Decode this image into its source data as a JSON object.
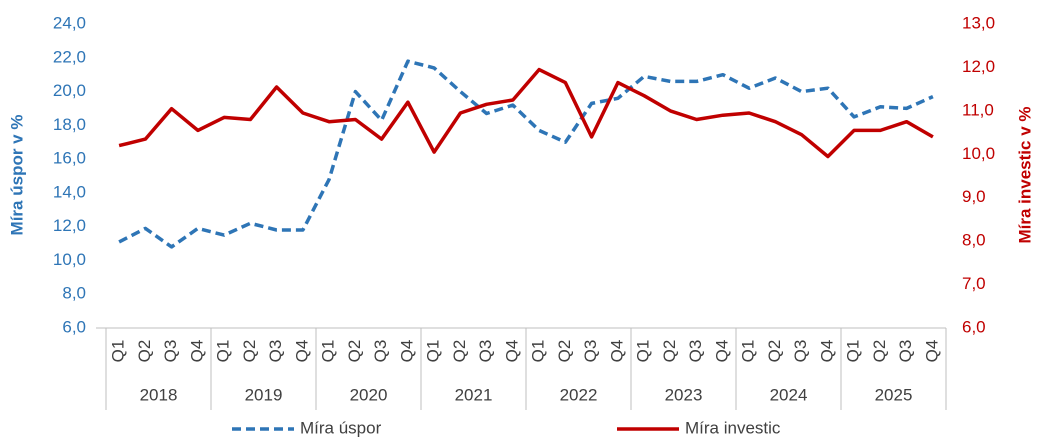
{
  "chart_data": {
    "type": "line",
    "categories": [
      "Q1",
      "Q2",
      "Q3",
      "Q4",
      "Q1",
      "Q2",
      "Q3",
      "Q4",
      "Q1",
      "Q2",
      "Q3",
      "Q4",
      "Q1",
      "Q2",
      "Q3",
      "Q4",
      "Q1",
      "Q2",
      "Q3",
      "Q4",
      "Q1",
      "Q2",
      "Q3",
      "Q4",
      "Q1",
      "Q2",
      "Q3",
      "Q4",
      "Q1",
      "Q2",
      "Q3",
      "Q4"
    ],
    "category_groups": [
      "2018",
      "2019",
      "2020",
      "2021",
      "2022",
      "2023",
      "2024",
      "2025"
    ],
    "y_label": "Míra úspor v %",
    "y2_label": "Míra investic v %",
    "ylim": [
      6,
      24
    ],
    "yticks": [
      {
        "value": 6,
        "label": "6,0"
      },
      {
        "value": 8,
        "label": "8,0"
      },
      {
        "value": 10,
        "label": "10,0"
      },
      {
        "value": 12,
        "label": "12,0"
      },
      {
        "value": 14,
        "label": "14,0"
      },
      {
        "value": 16,
        "label": "16,0"
      },
      {
        "value": 18,
        "label": "18,0"
      },
      {
        "value": 20,
        "label": "20,0"
      },
      {
        "value": 22,
        "label": "22,0"
      },
      {
        "value": 24,
        "label": "24,0"
      }
    ],
    "y2lim": [
      6,
      13
    ],
    "y2ticks": [
      {
        "value": 6,
        "label": "6,0"
      },
      {
        "value": 7,
        "label": "7,0"
      },
      {
        "value": 8,
        "label": "8,0"
      },
      {
        "value": 9,
        "label": "9,0"
      },
      {
        "value": 10,
        "label": "10,0"
      },
      {
        "value": 11,
        "label": "11,0"
      },
      {
        "value": 12,
        "label": "12,0"
      },
      {
        "value": 13,
        "label": "13,0"
      }
    ],
    "grid": false,
    "legend": "bottom",
    "series": [
      {
        "name": "Míra úspor",
        "color": "#2E75B6",
        "dash": true,
        "axis": "y",
        "values": [
          11.1,
          11.9,
          10.8,
          11.9,
          11.5,
          12.2,
          11.8,
          11.8,
          14.8,
          20.0,
          18.3,
          21.8,
          21.4,
          20.0,
          18.7,
          19.2,
          17.7,
          17.0,
          19.3,
          19.6,
          20.9,
          20.6,
          20.6,
          21.0,
          20.2,
          20.8,
          20.0,
          20.2,
          18.5,
          19.1,
          19.0,
          19.7
        ]
      },
      {
        "name": "Míra investic",
        "color": "#C00000",
        "dash": false,
        "axis": "y2",
        "values": [
          10.2,
          10.35,
          11.05,
          10.55,
          10.85,
          10.8,
          11.55,
          10.95,
          10.75,
          10.8,
          10.35,
          11.2,
          10.05,
          10.95,
          11.15,
          11.25,
          11.95,
          11.65,
          10.4,
          11.65,
          11.35,
          11.0,
          10.8,
          10.9,
          10.95,
          10.75,
          10.45,
          9.95,
          10.55,
          10.55,
          10.75,
          10.4
        ]
      }
    ]
  }
}
